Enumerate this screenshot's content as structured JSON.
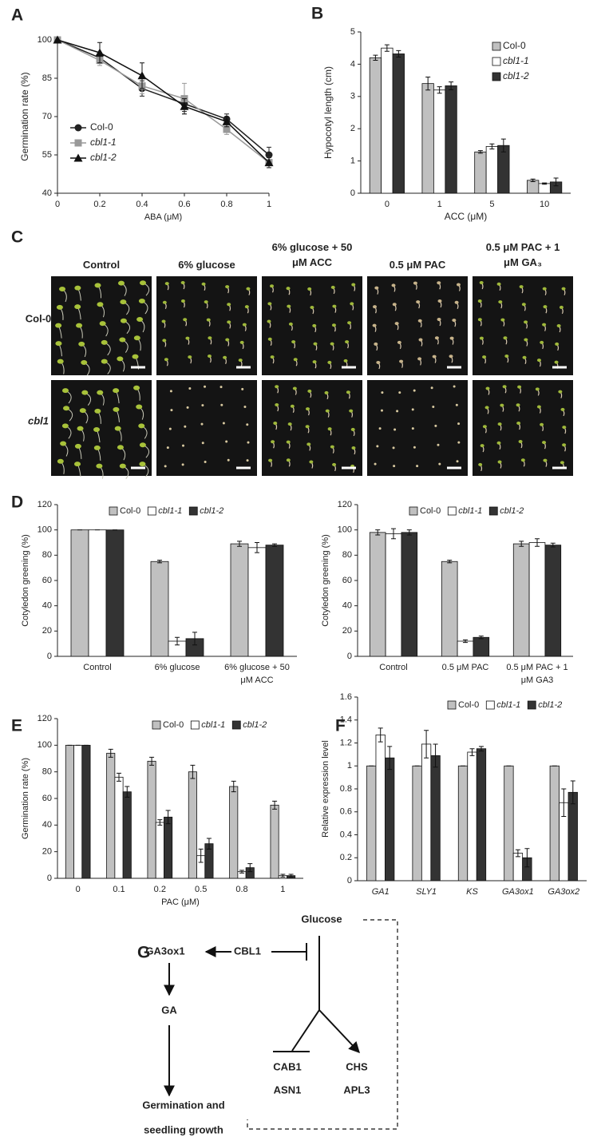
{
  "chart_data": [
    {
      "type": "line",
      "label": "A",
      "x_label": "ABA (μM)",
      "y_label": "Germination rate (%)",
      "x": [
        0,
        0.2,
        0.4,
        0.6,
        0.8,
        1
      ],
      "xlim": [
        0,
        1
      ],
      "xticks": [
        0,
        0.2,
        0.4,
        0.6,
        0.8,
        1
      ],
      "ylim": [
        40,
        100
      ],
      "yticks": [
        40,
        55,
        70,
        85,
        100
      ],
      "series": [
        {
          "name": "Col-0",
          "color": "#222222",
          "marker": "circle",
          "values": [
            100,
            93,
            81,
            75,
            69,
            55
          ],
          "errors": [
            0,
            2,
            3,
            3,
            2,
            3
          ]
        },
        {
          "name": "cbl1-1",
          "color": "#999999",
          "marker": "square",
          "values": [
            100,
            92,
            82,
            77,
            65,
            52
          ],
          "errors": [
            0,
            2,
            3,
            6,
            2,
            2
          ]
        },
        {
          "name": "cbl1-2",
          "color": "#111111",
          "marker": "triangle",
          "values": [
            100,
            95,
            86,
            74,
            68,
            52
          ],
          "errors": [
            0,
            4,
            5,
            3,
            2,
            2
          ]
        }
      ]
    },
    {
      "type": "bar",
      "label": "B",
      "x_label": "ACC (μM)",
      "y_label": "Hypocotyl length (cm)",
      "categories": [
        "0",
        "1",
        "5",
        "10"
      ],
      "ylim": [
        0,
        5
      ],
      "yticks": [
        0,
        1,
        2,
        3,
        4,
        5
      ],
      "series": [
        {
          "name": "Col-0",
          "color": "#c0c0c0",
          "values": [
            4.2,
            3.4,
            1.28,
            0.4
          ],
          "errors": [
            0.08,
            0.2,
            0.04,
            0.04
          ]
        },
        {
          "name": "cbl1-1",
          "color": "#ffffff",
          "values": [
            4.5,
            3.2,
            1.45,
            0.3
          ],
          "errors": [
            0.1,
            0.1,
            0.08,
            0.02
          ]
        },
        {
          "name": "cbl1-2",
          "color": "#333333",
          "values": [
            4.32,
            3.33,
            1.48,
            0.35
          ],
          "errors": [
            0.1,
            0.12,
            0.2,
            0.12
          ]
        }
      ]
    },
    {
      "type": "bar",
      "label": "D",
      "y_label": "Cotyledon greening (%)",
      "categories": [
        "Control",
        "6% glucose",
        "6% glucose + 50 μM ACC"
      ],
      "ylim": [
        0,
        120
      ],
      "yticks": [
        0,
        20,
        40,
        60,
        80,
        100,
        120
      ],
      "series": [
        {
          "name": "Col-0",
          "color": "#c0c0c0",
          "values": [
            100,
            75,
            89
          ],
          "errors": [
            0,
            1,
            2
          ]
        },
        {
          "name": "cbl1-1",
          "color": "#ffffff",
          "values": [
            100,
            12,
            86
          ],
          "errors": [
            0,
            3,
            4
          ]
        },
        {
          "name": "cbl1-2",
          "color": "#333333",
          "values": [
            100,
            14,
            88
          ],
          "errors": [
            0,
            5,
            1
          ]
        }
      ]
    },
    {
      "type": "bar",
      "y_label": "Cotyledon greening (%)",
      "categories": [
        "Control",
        "0.5 μM PAC",
        "0.5 μM PAC + 1 μM GA3"
      ],
      "ylim": [
        0,
        120
      ],
      "yticks": [
        0,
        20,
        40,
        60,
        80,
        100,
        120
      ],
      "series": [
        {
          "name": "Col-0",
          "color": "#c0c0c0",
          "values": [
            98,
            75,
            89
          ],
          "errors": [
            2,
            1,
            2
          ]
        },
        {
          "name": "cbl1-1",
          "color": "#ffffff",
          "values": [
            97,
            12,
            90
          ],
          "errors": [
            4,
            1,
            3
          ]
        },
        {
          "name": "cbl1-2",
          "color": "#333333",
          "values": [
            98,
            15,
            88
          ],
          "errors": [
            2,
            1,
            1.5
          ]
        }
      ]
    },
    {
      "type": "bar",
      "label": "E",
      "x_label": "PAC (μM)",
      "y_label": "Germination rate (%)",
      "categories": [
        "0",
        "0.1",
        "0.2",
        "0.5",
        "0.8",
        "1"
      ],
      "ylim": [
        0,
        120
      ],
      "yticks": [
        0,
        20,
        40,
        60,
        80,
        100,
        120
      ],
      "series": [
        {
          "name": "Col-0",
          "color": "#c0c0c0",
          "values": [
            100,
            94,
            88,
            80,
            69,
            55
          ],
          "errors": [
            0,
            3,
            3,
            5,
            4,
            3
          ]
        },
        {
          "name": "cbl1-1",
          "color": "#ffffff",
          "values": [
            100,
            76,
            42,
            17,
            5,
            2
          ],
          "errors": [
            0,
            3,
            2,
            5,
            1,
            1
          ]
        },
        {
          "name": "cbl1-2",
          "color": "#333333",
          "values": [
            100,
            65,
            46,
            26,
            8,
            2
          ],
          "errors": [
            0,
            4,
            5,
            4,
            3,
            1
          ]
        }
      ]
    },
    {
      "type": "bar",
      "label": "F",
      "y_label": "Relative expression level",
      "categories": [
        "GA1",
        "SLY1",
        "KS",
        "GA3ox1",
        "GA3ox2"
      ],
      "ylim": [
        0,
        1.6
      ],
      "yticks": [
        0,
        0.2,
        0.4,
        0.6,
        0.8,
        1,
        1.2,
        1.4,
        1.6
      ],
      "series": [
        {
          "name": "Col-0",
          "color": "#c0c0c0",
          "values": [
            1,
            1,
            1,
            1,
            1
          ],
          "errors": [
            0,
            0,
            0,
            0,
            0
          ]
        },
        {
          "name": "cbl1-1",
          "color": "#ffffff",
          "values": [
            1.27,
            1.19,
            1.12,
            0.24,
            0.68
          ],
          "errors": [
            0.06,
            0.12,
            0.03,
            0.03,
            0.12
          ]
        },
        {
          "name": "cbl1-2",
          "color": "#333333",
          "values": [
            1.07,
            1.09,
            1.15,
            0.2,
            0.77
          ],
          "errors": [
            0.1,
            0.1,
            0.02,
            0.08,
            0.1
          ]
        }
      ]
    }
  ],
  "panel_c": {
    "label": "C",
    "columns": [
      "Control",
      "6% glucose",
      "6% glucose + 50 μM ACC",
      "0.5 μM PAC",
      "0.5 μM PAC + 1 μM GA₃"
    ],
    "rows": [
      "Col-0",
      "cbl1"
    ]
  },
  "panel_g": {
    "label": "G",
    "nodes": [
      "Glucose",
      "CBL1",
      "GA3ox1",
      "GA",
      "Germination and",
      "seedling growth",
      "CAB1",
      "ASN1",
      "CHS",
      "APL3"
    ]
  }
}
